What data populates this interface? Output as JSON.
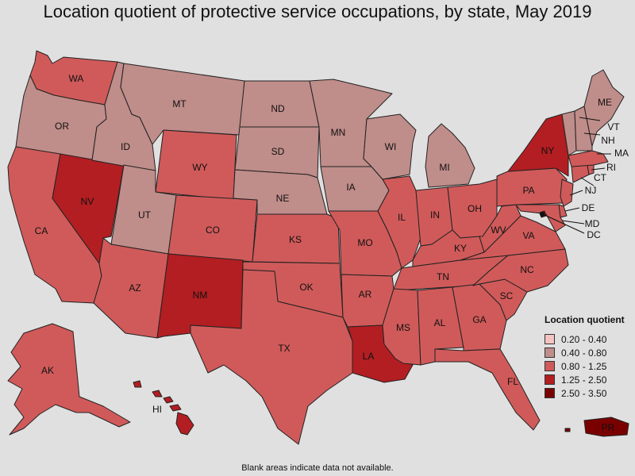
{
  "title": "Location quotient of protective service occupations, by state, May 2019",
  "footnote": "Blank areas indicate data not available.",
  "legend": {
    "title": "Location quotient",
    "bins": [
      {
        "label": "0.20 - 0.40",
        "color": "#f4c3c3"
      },
      {
        "label": "0.40 - 0.80",
        "color": "#bf8d8a"
      },
      {
        "label": "0.80 - 1.25",
        "color": "#d05a5a"
      },
      {
        "label": "1.25 - 2.50",
        "color": "#b21e22"
      },
      {
        "label": "2.50 - 3.50",
        "color": "#7a0000"
      }
    ]
  },
  "chart_data": {
    "type": "choropleth",
    "metric": "Location quotient",
    "period": "May 2019",
    "states": {
      "WA": "0.80 - 1.25",
      "OR": "0.40 - 0.80",
      "CA": "0.80 - 1.25",
      "NV": "1.25 - 2.50",
      "ID": "0.40 - 0.80",
      "MT": "0.40 - 0.80",
      "WY": "0.80 - 1.25",
      "UT": "0.40 - 0.80",
      "AZ": "0.80 - 1.25",
      "CO": "0.80 - 1.25",
      "NM": "1.25 - 2.50",
      "ND": "0.40 - 0.80",
      "SD": "0.40 - 0.80",
      "NE": "0.40 - 0.80",
      "KS": "0.80 - 1.25",
      "OK": "0.80 - 1.25",
      "TX": "0.80 - 1.25",
      "MN": "0.40 - 0.80",
      "IA": "0.40 - 0.80",
      "MO": "0.80 - 1.25",
      "AR": "0.80 - 1.25",
      "LA": "1.25 - 2.50",
      "WI": "0.40 - 0.80",
      "IL": "0.80 - 1.25",
      "MI": "0.40 - 0.80",
      "IN": "0.80 - 1.25",
      "OH": "0.80 - 1.25",
      "KY": "0.80 - 1.25",
      "TN": "0.80 - 1.25",
      "MS": "0.80 - 1.25",
      "AL": "0.80 - 1.25",
      "GA": "0.80 - 1.25",
      "FL": "0.80 - 1.25",
      "SC": "0.80 - 1.25",
      "NC": "0.80 - 1.25",
      "VA": "0.80 - 1.25",
      "WV": "0.80 - 1.25",
      "PA": "0.80 - 1.25",
      "NY": "1.25 - 2.50",
      "NJ": "0.80 - 1.25",
      "DE": "0.80 - 1.25",
      "MD": "0.80 - 1.25",
      "DC": "2.50 - 3.50",
      "CT": "0.80 - 1.25",
      "RI": "0.80 - 1.25",
      "MA": "0.80 - 1.25",
      "VT": "0.40 - 0.80",
      "NH": "0.40 - 0.80",
      "ME": "0.40 - 0.80",
      "AK": "0.80 - 1.25",
      "HI": "1.25 - 2.50",
      "PR": "2.50 - 3.50"
    }
  }
}
